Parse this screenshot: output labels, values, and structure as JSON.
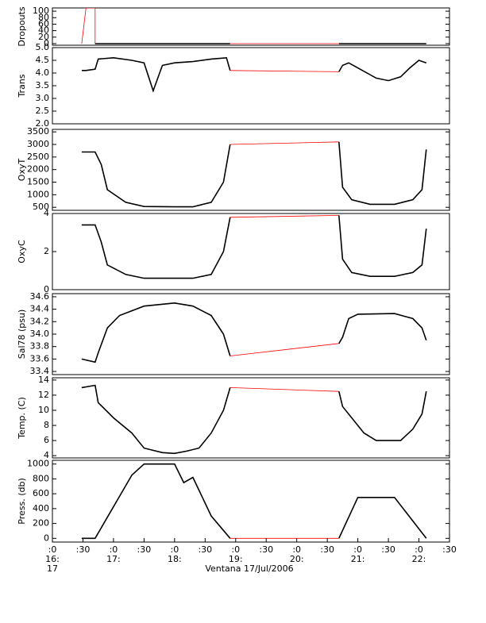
{
  "chart_data": [
    {
      "type": "line",
      "ylabel": "Dropouts",
      "xlim": [
        16,
        22.5
      ],
      "ylim": [
        -5,
        110
      ],
      "yticks": [
        0,
        20,
        40,
        60,
        80,
        100
      ],
      "series": [
        {
          "color": "#ff0000",
          "x": [
            16.48,
            16.55,
            16.7,
            16.7
          ],
          "values": [
            0,
            110,
            110,
            0
          ]
        },
        {
          "color": "#000000",
          "x": [
            16.7,
            18.91
          ],
          "values": [
            0,
            0
          ]
        },
        {
          "color": "#ff0000",
          "x": [
            18.91,
            20.69
          ],
          "values": [
            0,
            0
          ]
        },
        {
          "color": "#000000",
          "x": [
            20.69,
            22.12
          ],
          "values": [
            0,
            0
          ]
        }
      ]
    },
    {
      "type": "line",
      "ylabel": "Trans",
      "xlim": [
        16,
        22.5
      ],
      "ylim": [
        2.0,
        5.0
      ],
      "yticks": [
        {
          "value": 2.0,
          "label": "2.0"
        },
        2.5,
        {
          "value": 3.0,
          "label": "3.0"
        },
        3.5,
        {
          "value": 4.0,
          "label": "4.0"
        },
        4.5,
        {
          "value": 5.0,
          "label": "5.0"
        }
      ],
      "series": [
        {
          "color": "#000000",
          "x": [
            16.48,
            16.55,
            16.7,
            16.75,
            17.0,
            17.3,
            17.5,
            17.65,
            17.8,
            18.0,
            18.3,
            18.6,
            18.85,
            18.91
          ],
          "values": [
            4.1,
            4.1,
            4.15,
            4.55,
            4.6,
            4.5,
            4.4,
            3.3,
            4.3,
            4.4,
            4.45,
            4.55,
            4.6,
            4.1
          ]
        },
        {
          "color": "#ff0000",
          "x": [
            18.91,
            20.69
          ],
          "values": [
            4.1,
            4.05
          ]
        },
        {
          "color": "#000000",
          "x": [
            20.69,
            20.75,
            20.85,
            21.0,
            21.3,
            21.5,
            21.7,
            21.85,
            22.0,
            22.12
          ],
          "values": [
            4.05,
            4.3,
            4.4,
            4.2,
            3.8,
            3.7,
            3.85,
            4.2,
            4.5,
            4.4
          ]
        }
      ]
    },
    {
      "type": "line",
      "ylabel": "OxyT",
      "xlim": [
        16,
        22.5
      ],
      "ylim": [
        380,
        3600
      ],
      "yticks": [
        500,
        1000,
        1500,
        2000,
        2500,
        3000,
        3500
      ],
      "series": [
        {
          "color": "#000000",
          "x": [
            16.48,
            16.7,
            16.8,
            16.9,
            17.2,
            17.5,
            18.0,
            18.3,
            18.6,
            18.8,
            18.91
          ],
          "values": [
            2700,
            2700,
            2200,
            1200,
            700,
            530,
            520,
            520,
            700,
            1500,
            3000
          ]
        },
        {
          "color": "#ff0000",
          "x": [
            18.91,
            20.69
          ],
          "values": [
            3000,
            3100
          ]
        },
        {
          "color": "#000000",
          "x": [
            20.69,
            20.75,
            20.9,
            21.2,
            21.6,
            21.9,
            22.05,
            22.12
          ],
          "values": [
            3100,
            1300,
            800,
            620,
            620,
            800,
            1200,
            2800
          ]
        }
      ]
    },
    {
      "type": "line",
      "ylabel": "OxyC",
      "xlim": [
        16,
        22.5
      ],
      "ylim": [
        0,
        4
      ],
      "yticks": [
        0,
        2,
        4
      ],
      "series": [
        {
          "color": "#000000",
          "x": [
            16.48,
            16.7,
            16.8,
            16.9,
            17.2,
            17.5,
            18.3,
            18.6,
            18.8,
            18.91
          ],
          "values": [
            3.4,
            3.4,
            2.5,
            1.3,
            0.8,
            0.6,
            0.6,
            0.8,
            2.0,
            3.8
          ]
        },
        {
          "color": "#ff0000",
          "x": [
            18.91,
            20.69
          ],
          "values": [
            3.8,
            3.9
          ]
        },
        {
          "color": "#000000",
          "x": [
            20.69,
            20.75,
            20.9,
            21.2,
            21.6,
            21.9,
            22.05,
            22.12
          ],
          "values": [
            3.9,
            1.6,
            0.9,
            0.7,
            0.7,
            0.9,
            1.3,
            3.2
          ]
        }
      ]
    },
    {
      "type": "line",
      "ylabel": "Sal78 (psu)",
      "xlim": [
        16,
        22.5
      ],
      "ylim": [
        33.35,
        34.65
      ],
      "yticks": [
        33.4,
        33.6,
        33.8,
        {
          "value": 34.0,
          "label": "34.0"
        },
        34.2,
        34.4,
        34.6
      ],
      "series": [
        {
          "color": "#000000",
          "x": [
            16.48,
            16.7,
            16.75,
            16.9,
            17.1,
            17.5,
            18.0,
            18.3,
            18.6,
            18.8,
            18.91
          ],
          "values": [
            33.6,
            33.55,
            33.7,
            34.1,
            34.3,
            34.45,
            34.5,
            34.45,
            34.3,
            34.0,
            33.65
          ]
        },
        {
          "color": "#ff0000",
          "x": [
            18.91,
            20.69
          ],
          "values": [
            33.65,
            33.85
          ]
        },
        {
          "color": "#000000",
          "x": [
            20.69,
            20.75,
            20.85,
            21.0,
            21.6,
            21.9,
            22.05,
            22.12
          ],
          "values": [
            33.85,
            33.95,
            34.25,
            34.32,
            34.33,
            34.25,
            34.1,
            33.9
          ]
        }
      ]
    },
    {
      "type": "line",
      "ylabel": "Temp. (C)",
      "xlim": [
        16,
        22.5
      ],
      "ylim": [
        3.7,
        14.3
      ],
      "yticks": [
        4,
        6,
        8,
        10,
        12,
        14
      ],
      "series": [
        {
          "color": "#000000",
          "x": [
            16.48,
            16.7,
            16.75,
            17.0,
            17.3,
            17.5,
            17.8,
            18.0,
            18.2,
            18.4,
            18.6,
            18.8,
            18.91
          ],
          "values": [
            13.0,
            13.3,
            11.0,
            9.0,
            7.0,
            5.0,
            4.4,
            4.3,
            4.6,
            5.0,
            7.0,
            10.0,
            13.0
          ]
        },
        {
          "color": "#ff0000",
          "x": [
            18.91,
            20.69
          ],
          "values": [
            13.0,
            12.5
          ]
        },
        {
          "color": "#000000",
          "x": [
            20.69,
            20.75,
            20.9,
            21.1,
            21.3,
            21.7,
            21.9,
            22.05,
            22.12
          ],
          "values": [
            12.5,
            10.5,
            9.0,
            7.0,
            6.0,
            6.0,
            7.5,
            9.5,
            12.5
          ]
        }
      ]
    },
    {
      "type": "line",
      "ylabel": "Press. (db)",
      "xlabel": "Ventana 17/Jul/2006",
      "xlim": [
        16,
        22.5
      ],
      "ylim": [
        -50,
        1050
      ],
      "yticks": [
        0,
        200,
        400,
        600,
        800,
        1000
      ],
      "xticks": [
        {
          "value": 16,
          "label": ":0"
        },
        {
          "value": 16.5,
          "label": ":30"
        },
        {
          "value": 17,
          "label": ":0"
        },
        {
          "value": 17.5,
          "label": ":30"
        },
        {
          "value": 18,
          "label": ":0"
        },
        {
          "value": 18.5,
          "label": ":30"
        },
        {
          "value": 19,
          "label": ":0"
        },
        {
          "value": 19.5,
          "label": ":30"
        },
        {
          "value": 20,
          "label": ":0"
        },
        {
          "value": 20.5,
          "label": ":30"
        },
        {
          "value": 21,
          "label": ":0"
        },
        {
          "value": 21.5,
          "label": ":30"
        },
        {
          "value": 22,
          "label": ":0"
        },
        {
          "value": 22.5,
          "label": ":30"
        }
      ],
      "xticks_hour": [
        {
          "value": 16,
          "label": "16:"
        },
        {
          "value": 17,
          "label": "17:"
        },
        {
          "value": 18,
          "label": "18:"
        },
        {
          "value": 19,
          "label": "19:"
        },
        {
          "value": 20,
          "label": "20:"
        },
        {
          "value": 21,
          "label": "21:"
        },
        {
          "value": 22,
          "label": "22:"
        }
      ],
      "date_label": {
        "value": 16,
        "label": "17"
      },
      "series": [
        {
          "color": "#000000",
          "x": [
            16.48,
            16.7,
            17.3,
            17.5,
            18.0,
            18.15,
            18.3,
            18.6,
            18.91
          ],
          "values": [
            0,
            0,
            850,
            1000,
            1000,
            750,
            820,
            300,
            0
          ]
        },
        {
          "color": "#ff0000",
          "x": [
            18.91,
            20.69
          ],
          "values": [
            0,
            0
          ]
        },
        {
          "color": "#000000",
          "x": [
            20.69,
            21.0,
            21.6,
            22.12
          ],
          "values": [
            0,
            550,
            550,
            0
          ]
        }
      ]
    }
  ]
}
